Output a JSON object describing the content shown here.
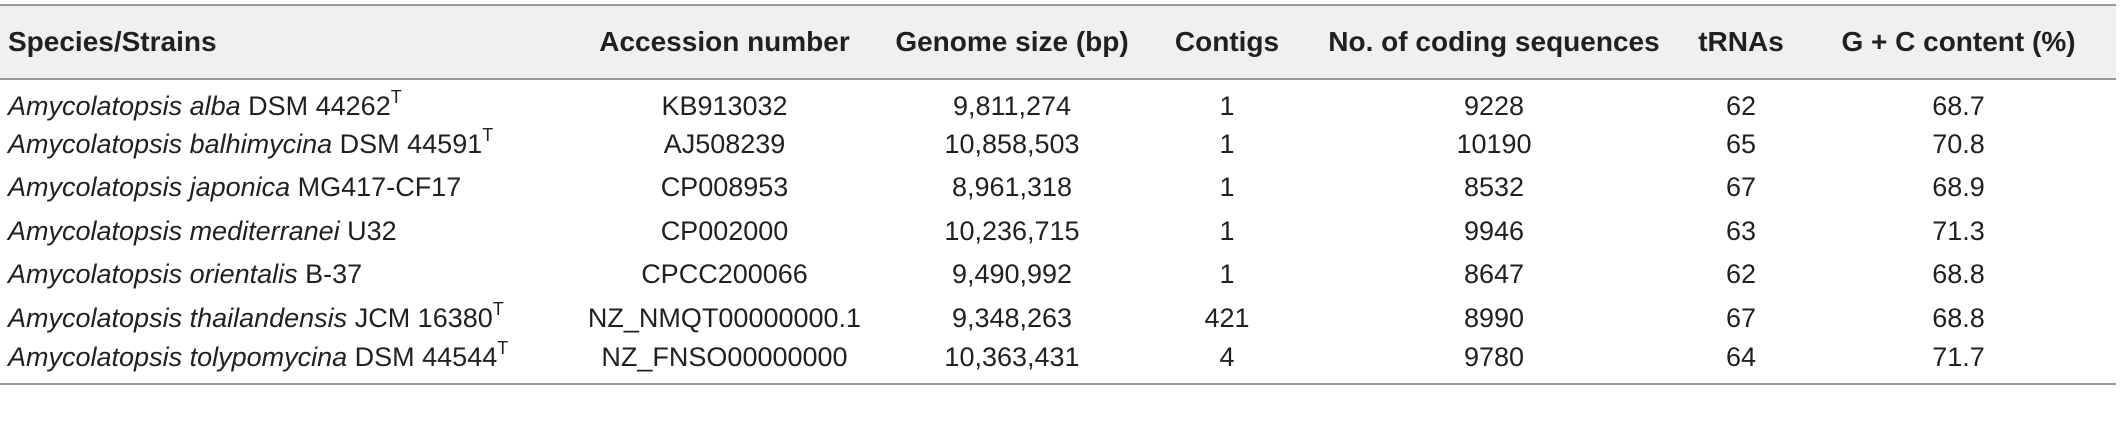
{
  "table": {
    "headers": [
      "Species/Strains",
      "Accession number",
      "Genome size (bp)",
      "Contigs",
      "No. of coding sequences",
      "tRNAs",
      "G + C content (%)"
    ],
    "rows": [
      {
        "species": "Amycolatopsis alba",
        "strain": " DSM 44262",
        "sup": "T",
        "accession": "KB913032",
        "genome_size": "9,811,274",
        "contigs": "1",
        "cds": "9228",
        "trnas": "62",
        "gc": "68.7"
      },
      {
        "species": "Amycolatopsis balhimycina",
        "strain": " DSM 44591",
        "sup": "T",
        "accession": "AJ508239",
        "genome_size": "10,858,503",
        "contigs": "1",
        "cds": "10190",
        "trnas": "65",
        "gc": "70.8"
      },
      {
        "species": "Amycolatopsis japonica",
        "strain": " MG417-CF17",
        "sup": "",
        "accession": "CP008953",
        "genome_size": "8,961,318",
        "contigs": "1",
        "cds": "8532",
        "trnas": "67",
        "gc": "68.9"
      },
      {
        "species": "Amycolatopsis mediterranei",
        "strain": " U32",
        "sup": "",
        "accession": "CP002000",
        "genome_size": "10,236,715",
        "contigs": "1",
        "cds": "9946",
        "trnas": "63",
        "gc": "71.3"
      },
      {
        "species": "Amycolatopsis orientalis",
        "strain": " B-37",
        "sup": "",
        "accession": "CPCC200066",
        "genome_size": "9,490,992",
        "contigs": "1",
        "cds": "8647",
        "trnas": "62",
        "gc": "68.8"
      },
      {
        "species": "Amycolatopsis thailandensis",
        "strain": " JCM 16380",
        "sup": "T",
        "accession": "NZ_NMQT00000000.1",
        "genome_size": "9,348,263",
        "contigs": "421",
        "cds": "8990",
        "trnas": "67",
        "gc": "68.8"
      },
      {
        "species": "Amycolatopsis tolypomycina",
        "strain": " DSM 44544",
        "sup": "T",
        "accession": "NZ_FNSO00000000",
        "genome_size": "10,363,431",
        "contigs": "4",
        "cds": "9780",
        "trnas": "64",
        "gc": "71.7"
      }
    ]
  }
}
